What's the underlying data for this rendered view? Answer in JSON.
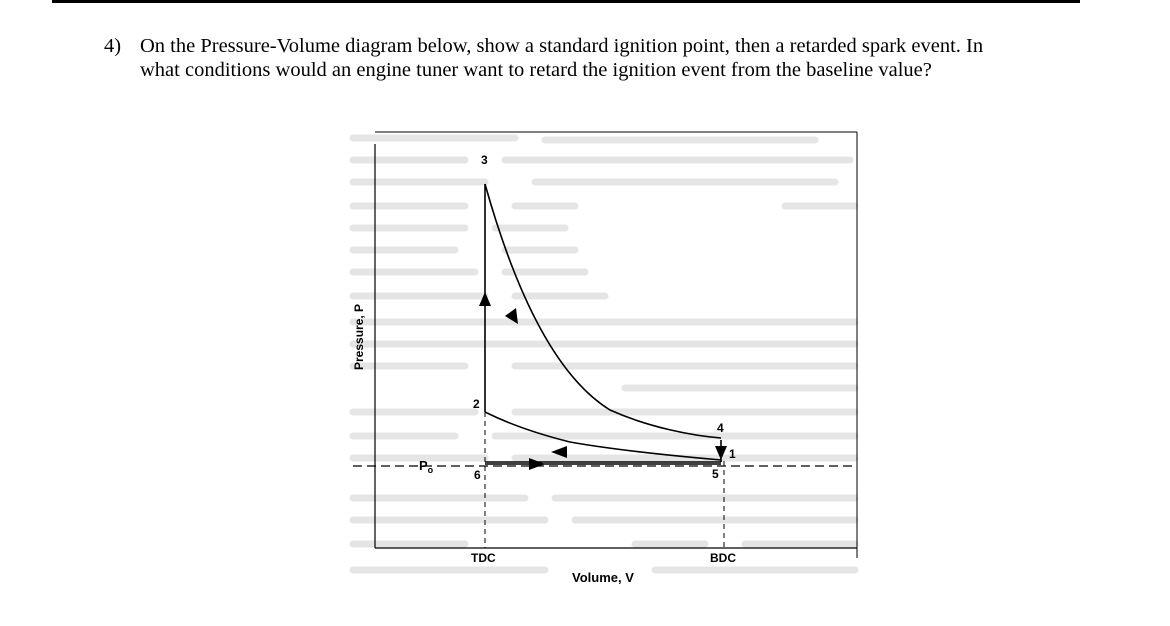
{
  "question": {
    "number": "4)",
    "line1": "On the Pressure-Volume diagram below, show a standard ignition point, then a retarded spark event. In",
    "line2": "what conditions would an engine tuner want to retard the ignition event from the baseline value?"
  },
  "diagram": {
    "y_axis_label": "Pressure, P",
    "x_axis_label": "Volume, V",
    "tdc_label": "TDC",
    "bdc_label": "BDC",
    "p0_label": "P",
    "p0_subscript": "o",
    "point_labels": {
      "p1": "1",
      "p2": "2",
      "p3": "3",
      "p4": "4",
      "p5": "5",
      "p6": "6"
    }
  },
  "colors": {
    "ink": "#000000",
    "background_text": "#c8c8c8"
  }
}
